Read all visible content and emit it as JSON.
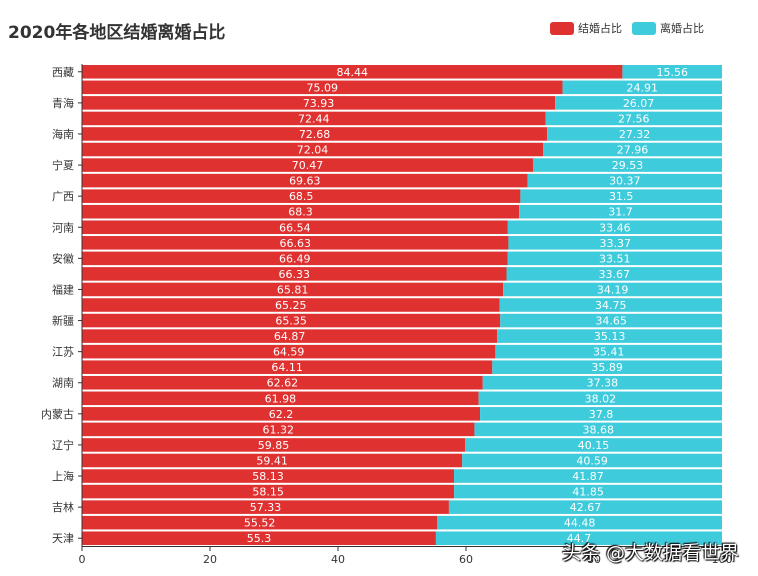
{
  "chart_data": {
    "type": "bar",
    "orientation": "horizontal",
    "stacked": true,
    "title": "2020年各地区结婚离婚占比",
    "xlim": [
      0,
      100
    ],
    "x_ticks": [
      "0",
      "20",
      "40",
      "60",
      "80",
      "100"
    ],
    "legend_position": "top-right",
    "grid": false,
    "category_labels_shown": [
      "西藏",
      "青海",
      "海南",
      "宁夏",
      "广西",
      "河南",
      "安徽",
      "福建",
      "新疆",
      "江苏",
      "湖南",
      "内蒙古",
      "辽宁",
      "上海",
      "吉林",
      "天津"
    ],
    "rows": [
      {
        "label": "西藏",
        "marriage": 84.44,
        "divorce": 15.56
      },
      {
        "label": "",
        "marriage": 75.09,
        "divorce": 24.91
      },
      {
        "label": "青海",
        "marriage": 73.93,
        "divorce": 26.07
      },
      {
        "label": "",
        "marriage": 72.44,
        "divorce": 27.56
      },
      {
        "label": "海南",
        "marriage": 72.68,
        "divorce": 27.32
      },
      {
        "label": "",
        "marriage": 72.04,
        "divorce": 27.96
      },
      {
        "label": "宁夏",
        "marriage": 70.47,
        "divorce": 29.53
      },
      {
        "label": "",
        "marriage": 69.63,
        "divorce": 30.37
      },
      {
        "label": "广西",
        "marriage": 68.5,
        "divorce": 31.5
      },
      {
        "label": "",
        "marriage": 68.3,
        "divorce": 31.7
      },
      {
        "label": "河南",
        "marriage": 66.54,
        "divorce": 33.46
      },
      {
        "label": "",
        "marriage": 66.63,
        "divorce": 33.37
      },
      {
        "label": "安徽",
        "marriage": 66.49,
        "divorce": 33.51
      },
      {
        "label": "",
        "marriage": 66.33,
        "divorce": 33.67
      },
      {
        "label": "福建",
        "marriage": 65.81,
        "divorce": 34.19
      },
      {
        "label": "",
        "marriage": 65.25,
        "divorce": 34.75
      },
      {
        "label": "新疆",
        "marriage": 65.35,
        "divorce": 34.65
      },
      {
        "label": "",
        "marriage": 64.87,
        "divorce": 35.13
      },
      {
        "label": "江苏",
        "marriage": 64.59,
        "divorce": 35.41
      },
      {
        "label": "",
        "marriage": 64.11,
        "divorce": 35.89
      },
      {
        "label": "湖南",
        "marriage": 62.62,
        "divorce": 37.38
      },
      {
        "label": "",
        "marriage": 61.98,
        "divorce": 38.02
      },
      {
        "label": "内蒙古",
        "marriage": 62.2,
        "divorce": 37.8
      },
      {
        "label": "",
        "marriage": 61.32,
        "divorce": 38.68
      },
      {
        "label": "辽宁",
        "marriage": 59.85,
        "divorce": 40.15
      },
      {
        "label": "",
        "marriage": 59.41,
        "divorce": 40.59
      },
      {
        "label": "上海",
        "marriage": 58.13,
        "divorce": 41.87
      },
      {
        "label": "",
        "marriage": 58.15,
        "divorce": 41.85
      },
      {
        "label": "吉林",
        "marriage": 57.33,
        "divorce": 42.67
      },
      {
        "label": "",
        "marriage": 55.52,
        "divorce": 44.48
      },
      {
        "label": "天津",
        "marriage": 55.3,
        "divorce": 44.7
      }
    ],
    "series": [
      {
        "name": "结婚占比",
        "key": "marriage",
        "color": "#e03131"
      },
      {
        "name": "离婚占比",
        "key": "divorce",
        "color": "#3ecbdb"
      }
    ]
  },
  "watermark": "头条 @大数据看世界"
}
